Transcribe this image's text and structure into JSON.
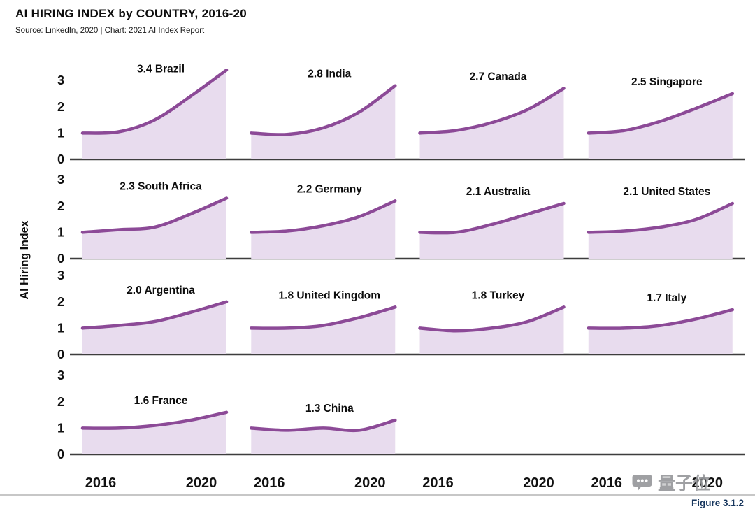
{
  "header": {
    "title": "AI HIRING INDEX by COUNTRY, 2016-20",
    "source": "Source: LinkedIn, 2020 | Chart: 2021 AI Index Report"
  },
  "chart_data": {
    "type": "line",
    "title": "AI HIRING INDEX by COUNTRY, 2016-20",
    "ylabel": "AI Hiring Index",
    "x": [
      2016,
      2017,
      2018,
      2019,
      2020
    ],
    "x_axis_tick_labels": [
      "2016",
      "2020"
    ],
    "y_ticks": [
      3,
      2,
      1,
      0
    ],
    "ylim": [
      0,
      3.6
    ],
    "grid": {
      "rows": 4,
      "cols": 4
    },
    "legend": "none",
    "colors": {
      "line": "#8c4a97",
      "fill": "#e8dcee",
      "baseline": "#3d3d3d"
    },
    "series": [
      {
        "name": "Brazil",
        "label": "3.4 Brazil",
        "final": 3.4,
        "row": 0,
        "col": 0,
        "values": [
          1.0,
          1.05,
          1.5,
          2.4,
          3.4
        ]
      },
      {
        "name": "India",
        "label": "2.8 India",
        "final": 2.8,
        "row": 0,
        "col": 1,
        "values": [
          1.0,
          0.95,
          1.2,
          1.8,
          2.8
        ]
      },
      {
        "name": "Canada",
        "label": "2.7 Canada",
        "final": 2.7,
        "row": 0,
        "col": 2,
        "values": [
          1.0,
          1.1,
          1.4,
          1.9,
          2.7
        ]
      },
      {
        "name": "Singapore",
        "label": "2.5 Singapore",
        "final": 2.5,
        "row": 0,
        "col": 3,
        "values": [
          1.0,
          1.1,
          1.45,
          1.95,
          2.5
        ]
      },
      {
        "name": "South Africa",
        "label": "2.3 South Africa",
        "final": 2.3,
        "row": 1,
        "col": 0,
        "values": [
          1.0,
          1.1,
          1.2,
          1.7,
          2.3
        ]
      },
      {
        "name": "Germany",
        "label": "2.2 Germany",
        "final": 2.2,
        "row": 1,
        "col": 1,
        "values": [
          1.0,
          1.05,
          1.25,
          1.6,
          2.2
        ]
      },
      {
        "name": "Australia",
        "label": "2.1 Australia",
        "final": 2.1,
        "row": 1,
        "col": 2,
        "values": [
          1.0,
          1.0,
          1.3,
          1.7,
          2.1
        ]
      },
      {
        "name": "United States",
        "label": "2.1 United States",
        "final": 2.1,
        "row": 1,
        "col": 3,
        "values": [
          1.0,
          1.05,
          1.2,
          1.5,
          2.1
        ]
      },
      {
        "name": "Argentina",
        "label": "2.0 Argentina",
        "final": 2.0,
        "row": 2,
        "col": 0,
        "values": [
          1.0,
          1.1,
          1.25,
          1.6,
          2.0
        ]
      },
      {
        "name": "United Kingdom",
        "label": "1.8 United Kingdom",
        "final": 1.8,
        "row": 2,
        "col": 1,
        "values": [
          1.0,
          1.0,
          1.1,
          1.4,
          1.8
        ]
      },
      {
        "name": "Turkey",
        "label": "1.8 Turkey",
        "final": 1.8,
        "row": 2,
        "col": 2,
        "values": [
          1.0,
          0.9,
          1.0,
          1.25,
          1.8
        ]
      },
      {
        "name": "Italy",
        "label": "1.7 Italy",
        "final": 1.7,
        "row": 2,
        "col": 3,
        "values": [
          1.0,
          1.0,
          1.1,
          1.35,
          1.7
        ]
      },
      {
        "name": "France",
        "label": "1.6 France",
        "final": 1.6,
        "row": 3,
        "col": 0,
        "values": [
          1.0,
          1.0,
          1.1,
          1.3,
          1.6
        ]
      },
      {
        "name": "China",
        "label": "1.3 China",
        "final": 1.3,
        "row": 3,
        "col": 1,
        "values": [
          1.0,
          0.92,
          1.0,
          0.92,
          1.3
        ]
      }
    ]
  },
  "footer": {
    "figure_label": "Figure 3.1.2",
    "watermark": "量子位"
  }
}
